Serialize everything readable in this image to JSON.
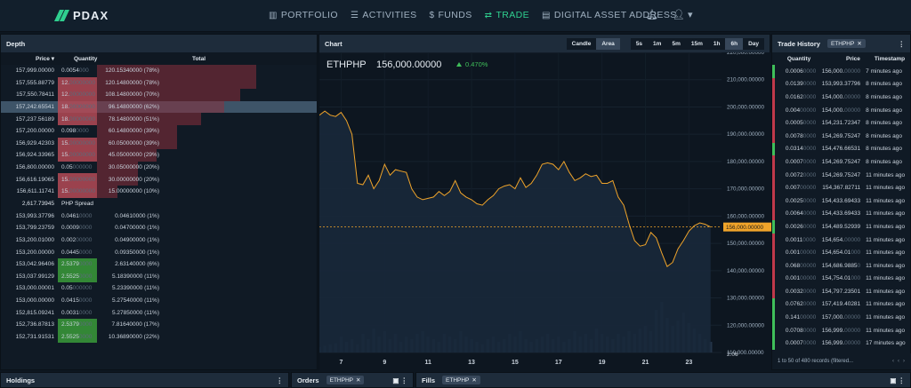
{
  "nav": {
    "brand": "PDAX",
    "items": [
      {
        "label": "PORTFOLIO",
        "icon": "bar-chart-icon",
        "glyph": "▥",
        "active": false
      },
      {
        "label": "ACTIVITIES",
        "icon": "list-icon",
        "glyph": "☰",
        "active": false
      },
      {
        "label": "FUNDS",
        "icon": "dollar-icon",
        "glyph": "$",
        "active": false
      },
      {
        "label": "TRADE",
        "icon": "exchange-icon",
        "glyph": "⇄",
        "active": true
      },
      {
        "label": "DIGITAL ASSET ADDRESS",
        "icon": "wallet-icon",
        "glyph": "▤",
        "active": false
      }
    ]
  },
  "depth": {
    "title": "Depth",
    "columns": {
      "price": "Price ▾",
      "quantity": "Quantity",
      "total": "Total"
    },
    "asks": [
      {
        "price": "157,999.00000",
        "qty": "0.0054",
        "qty_dim": "000",
        "total": "120.15340000 (78%)",
        "pct": 78,
        "qpct": 0
      },
      {
        "price": "157,555.88779",
        "qty": "12.",
        "qty_dim": "00000000",
        "total": "120.14800000 (78%)",
        "pct": 78,
        "qpct": 100
      },
      {
        "price": "157,550.78411",
        "qty": "12.",
        "qty_dim": "00000000",
        "total": "108.14800000 (70%)",
        "pct": 70,
        "qpct": 100
      },
      {
        "price": "157,242.65541",
        "qty": "18.",
        "qty_dim": "00000000",
        "total": "96.14800000 (62%)",
        "pct": 62,
        "qpct": 100,
        "highlight": true
      },
      {
        "price": "157,237.56189",
        "qty": "18.",
        "qty_dim": "00000000",
        "total": "78.14800000 (51%)",
        "pct": 51,
        "qpct": 100
      },
      {
        "price": "157,200.00000",
        "qty": "0.098",
        "qty_dim": "0000",
        "total": "60.14800000 (39%)",
        "pct": 39,
        "qpct": 0
      },
      {
        "price": "156,929.42303",
        "qty": "15.",
        "qty_dim": "00000000",
        "total": "60.05000000 (39%)",
        "pct": 39,
        "qpct": 100
      },
      {
        "price": "156,924.33965",
        "qty": "15.",
        "qty_dim": "00000000",
        "total": "45.05000000 (29%)",
        "pct": 29,
        "qpct": 100
      },
      {
        "price": "156,800.00000",
        "qty": "0.05",
        "qty_dim": "000000",
        "total": "30.05000000 (20%)",
        "pct": 20,
        "qpct": 0
      },
      {
        "price": "156,616.19065",
        "qty": "15.",
        "qty_dim": "00000000",
        "total": "30.00000000 (20%)",
        "pct": 20,
        "qpct": 100
      },
      {
        "price": "156,611.11741",
        "qty": "15.",
        "qty_dim": "00000000",
        "total": "15.00000000 (10%)",
        "pct": 10,
        "qpct": 100
      }
    ],
    "spread": {
      "value": "2,617.73945",
      "label": "PHP Spread"
    },
    "bids": [
      {
        "price": "153,993.37796",
        "qty": "0.0461",
        "qty_dim": "0000",
        "total": "0.04610000 (1%)",
        "qpct": 0
      },
      {
        "price": "153,799.23759",
        "qty": "0.0009",
        "qty_dim": "0000",
        "total": "0.04700000 (1%)",
        "qpct": 0
      },
      {
        "price": "153,200.01000",
        "qty": "0.002",
        "qty_dim": "00000",
        "total": "0.04900000 (1%)",
        "qpct": 0
      },
      {
        "price": "153,200.00000",
        "qty": "0.0445",
        "qty_dim": "0000",
        "total": "0.09350000 (1%)",
        "qpct": 0
      },
      {
        "price": "153,042.96406",
        "qty": "2.5379",
        "qty_dim": "0000",
        "total": "2.63140000 (6%)",
        "qpct": 100
      },
      {
        "price": "153,037.99129",
        "qty": "2.5525",
        "qty_dim": "0000",
        "total": "5.18390000 (11%)",
        "qpct": 100
      },
      {
        "price": "153,000.00001",
        "qty": "0.05",
        "qty_dim": "000000",
        "total": "5.23390000 (11%)",
        "qpct": 0
      },
      {
        "price": "153,000.00000",
        "qty": "0.0415",
        "qty_dim": "0000",
        "total": "5.27540000 (11%)",
        "qpct": 0
      },
      {
        "price": "152,815.09241",
        "qty": "0.0031",
        "qty_dim": "0000",
        "total": "5.27850000 (11%)",
        "qpct": 0
      },
      {
        "price": "152,736.87813",
        "qty": "2.5379",
        "qty_dim": "0000",
        "total": "7.81640000 (17%)",
        "qpct": 100
      },
      {
        "price": "152,731.91531",
        "qty": "2.5525",
        "qty_dim": "0000",
        "total": "10.36890000 (22%)",
        "qpct": 100
      }
    ]
  },
  "chart": {
    "title": "Chart",
    "modes": [
      "Candle",
      "Area"
    ],
    "active_mode": "Area",
    "intervals": [
      "5s",
      "1m",
      "5m",
      "15m",
      "1h",
      "6h",
      "Day"
    ],
    "active_interval": "6h",
    "pair": "ETHPHP",
    "price": "156,000.00000",
    "change": "0.470%",
    "last_price_tag": "156,000.00000",
    "volume_label": "2.06",
    "colors": {
      "line": "#f0a42a",
      "up": "#3fbf5a",
      "ask": "#8a2f3c",
      "bid": "#3a9b3a"
    }
  },
  "chart_data": {
    "type": "area",
    "ylim": [
      110000,
      220000
    ],
    "yticks": [
      110000,
      120000,
      130000,
      140000,
      150000,
      160000,
      170000,
      180000,
      190000,
      200000,
      210000,
      220000
    ],
    "ytick_labels": [
      "110,000.00000",
      "120,000.00000",
      "130,000.00000",
      "140,000.00000",
      "150,000.00000",
      "160,000.00000",
      "170,000.00000",
      "180,000.00000",
      "190,000.00000",
      "200,000.00000",
      "210,000.00000",
      "220,000.00000"
    ],
    "xlim": [
      6,
      24.5
    ],
    "xticks": [
      7,
      9,
      11,
      13,
      15,
      17,
      19,
      21,
      23
    ],
    "x": [
      6,
      6.25,
      6.5,
      6.75,
      7,
      7.25,
      7.5,
      7.75,
      8,
      8.25,
      8.5,
      8.75,
      9,
      9.25,
      9.5,
      9.75,
      10,
      10.25,
      10.5,
      10.75,
      11,
      11.25,
      11.5,
      11.75,
      12,
      12.25,
      12.5,
      12.75,
      13,
      13.25,
      13.5,
      13.75,
      14,
      14.25,
      14.5,
      14.75,
      15,
      15.25,
      15.5,
      15.75,
      16,
      16.25,
      16.5,
      16.75,
      17,
      17.25,
      17.5,
      17.75,
      18,
      18.25,
      18.5,
      18.75,
      19,
      19.25,
      19.5,
      19.75,
      20,
      20.25,
      20.5,
      20.75,
      21,
      21.25,
      21.5,
      21.75,
      22,
      22.25,
      22.5,
      22.75,
      23,
      23.25,
      23.5,
      23.75,
      24
    ],
    "y": [
      197000,
      198500,
      197000,
      196500,
      198000,
      195000,
      190000,
      172000,
      171500,
      175000,
      170000,
      173000,
      179000,
      175000,
      177000,
      176500,
      176000,
      170000,
      167000,
      166000,
      166500,
      167000,
      169000,
      167500,
      169000,
      173000,
      168500,
      167000,
      166000,
      164500,
      164000,
      166000,
      167500,
      170000,
      171000,
      171500,
      170000,
      174000,
      170500,
      172000,
      175000,
      179000,
      179500,
      179000,
      177000,
      180000,
      176000,
      173000,
      174000,
      175500,
      174500,
      175000,
      172000,
      172000,
      173000,
      167000,
      164000,
      157000,
      151000,
      149000,
      149500,
      154000,
      152000,
      146500,
      141500,
      143000,
      148000,
      151000,
      154500,
      156500,
      157500,
      157000,
      156000
    ],
    "volume": [
      0.2,
      0.25,
      0.3,
      0.35,
      0.6,
      0.4,
      0.5,
      0.3,
      0.7,
      0.5,
      0.9,
      0.6,
      0.8,
      0.5,
      0.7,
      0.4,
      0.6,
      0.5,
      0.7,
      0.8,
      0.6,
      0.5,
      0.4,
      0.7,
      0.6,
      0.5,
      0.8,
      0.6,
      0.5,
      0.4,
      0.3,
      0.5,
      0.6,
      0.4,
      0.5,
      0.7,
      0.6,
      0.8,
      0.5,
      0.4,
      0.5,
      0.6,
      0.7,
      0.5,
      0.6,
      0.4,
      0.5,
      0.8,
      0.6,
      0.7,
      0.5,
      0.9,
      0.7,
      0.6,
      0.5,
      0.7,
      0.6,
      0.8,
      0.7,
      0.9,
      1.0,
      0.8,
      1.6,
      1.9,
      1.3,
      1.0,
      1.2,
      1.5,
      1.1,
      0.9,
      0.7,
      0.5,
      0.4
    ]
  },
  "trade": {
    "title": "Trade History",
    "filter": "ETHPHP",
    "columns": {
      "quantity": "Quantity",
      "price": "Price",
      "timestamp": "Timestamp"
    },
    "rows": [
      {
        "side": "buy",
        "qty": "0.0006",
        "qty_dim": "0000",
        "price": "156,000.",
        "price_dim": "00000",
        "time": "7 minutes ago"
      },
      {
        "side": "sell",
        "qty": "0.0139",
        "qty_dim": "0000",
        "price": "153,993.37796",
        "price_dim": "",
        "time": "8 minutes ago"
      },
      {
        "side": "sell",
        "qty": "0.0162",
        "qty_dim": "0000",
        "price": "154,000.",
        "price_dim": "00000",
        "time": "8 minutes ago"
      },
      {
        "side": "sell",
        "qty": "0.004",
        "qty_dim": "00000",
        "price": "154,000.",
        "price_dim": "00000",
        "time": "8 minutes ago"
      },
      {
        "side": "sell",
        "qty": "0.0005",
        "qty_dim": "0000",
        "price": "154,231.72347",
        "price_dim": "",
        "time": "8 minutes ago"
      },
      {
        "side": "sell",
        "qty": "0.0078",
        "qty_dim": "0000",
        "price": "154,269.75247",
        "price_dim": "",
        "time": "8 minutes ago"
      },
      {
        "side": "buy",
        "qty": "0.0314",
        "qty_dim": "0000",
        "price": "154,476.66531",
        "price_dim": "",
        "time": "8 minutes ago"
      },
      {
        "side": "sell",
        "qty": "0.0007",
        "qty_dim": "0000",
        "price": "154,269.75247",
        "price_dim": "",
        "time": "8 minutes ago"
      },
      {
        "side": "sell",
        "qty": "0.0072",
        "qty_dim": "0000",
        "price": "154,269.75247",
        "price_dim": "",
        "time": "11 minutes ago"
      },
      {
        "side": "sell",
        "qty": "0.007",
        "qty_dim": "00000",
        "price": "154,367.82711",
        "price_dim": "",
        "time": "11 minutes ago"
      },
      {
        "side": "sell",
        "qty": "0.0025",
        "qty_dim": "0000",
        "price": "154,433.69433",
        "price_dim": "",
        "time": "11 minutes ago"
      },
      {
        "side": "sell",
        "qty": "0.0064",
        "qty_dim": "0000",
        "price": "154,433.69433",
        "price_dim": "",
        "time": "11 minutes ago"
      },
      {
        "side": "buy",
        "qty": "0.0026",
        "qty_dim": "0000",
        "price": "154,489.52939",
        "price_dim": "",
        "time": "11 minutes ago"
      },
      {
        "side": "sell",
        "qty": "0.0011",
        "qty_dim": "0000",
        "price": "154,654.",
        "price_dim": "00000",
        "time": "11 minutes ago"
      },
      {
        "side": "sell",
        "qty": "0.001",
        "qty_dim": "00000",
        "price": "154,654.01",
        "price_dim": "000",
        "time": "11 minutes ago"
      },
      {
        "side": "sell",
        "qty": "0.068",
        "qty_dim": "00000",
        "price": "154,686.9885",
        "price_dim": "0",
        "time": "11 minutes ago"
      },
      {
        "side": "sell",
        "qty": "0.001",
        "qty_dim": "00000",
        "price": "154,754.01",
        "price_dim": "000",
        "time": "11 minutes ago"
      },
      {
        "side": "sell",
        "qty": "0.0032",
        "qty_dim": "0000",
        "price": "154,797.23501",
        "price_dim": "",
        "time": "11 minutes ago"
      },
      {
        "side": "buy",
        "qty": "0.0762",
        "qty_dim": "0000",
        "price": "157,419.40281",
        "price_dim": "",
        "time": "11 minutes ago"
      },
      {
        "side": "buy",
        "qty": "0.141",
        "qty_dim": "00000",
        "price": "157,000.",
        "price_dim": "00000",
        "time": "11 minutes ago"
      },
      {
        "side": "buy",
        "qty": "0.0708",
        "qty_dim": "0000",
        "price": "156,999.",
        "price_dim": "00000",
        "time": "11 minutes ago"
      },
      {
        "side": "buy",
        "qty": "0.0007",
        "qty_dim": "0000",
        "price": "156,999.",
        "price_dim": "00000",
        "time": "17 minutes ago"
      }
    ],
    "footer": "1 to 50 of 480 records (filtered..."
  },
  "bottom": {
    "holdings": "Holdings",
    "orders": "Orders",
    "orders_tag": "ETHPHP",
    "fills": "Fills",
    "fills_tag": "ETHPHP"
  }
}
